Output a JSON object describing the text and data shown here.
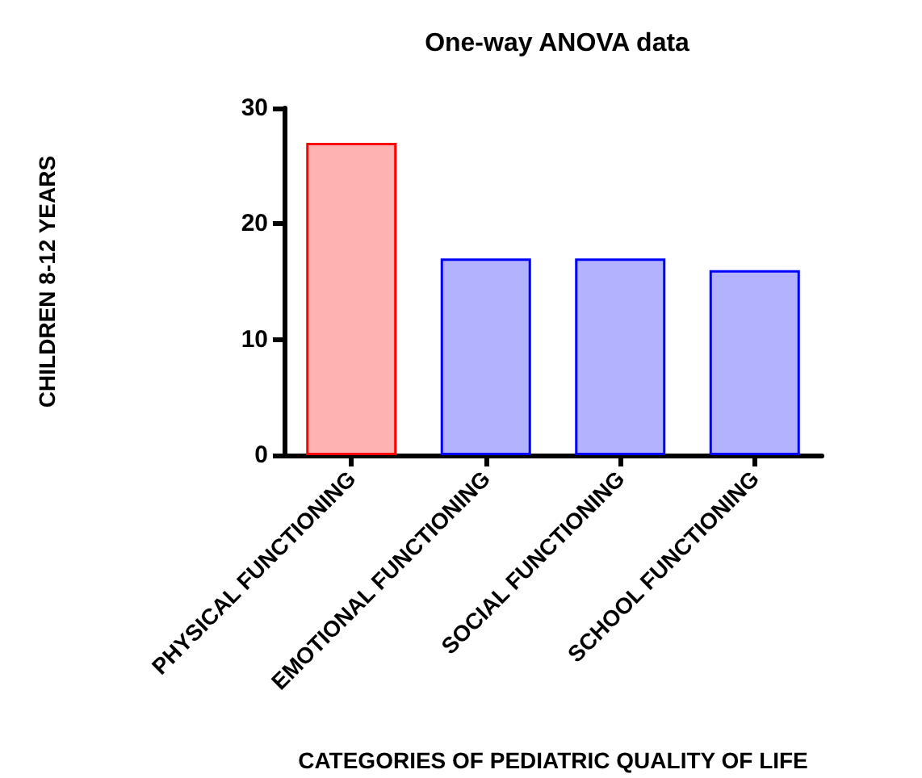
{
  "chart_data": {
    "type": "bar",
    "title": "One-way ANOVA data",
    "xlabel": "CATEGORIES OF PEDIATRIC QUALITY OF LIFE",
    "ylabel": "CHILDREN 8-12 YEARS",
    "categories": [
      "PHYSICAL FUNCTIONING",
      "EMOTIONAL FUNCTIONING",
      "SOCIAL FUNCTIONING",
      "SCHOOL FUNCTIONING"
    ],
    "values": [
      27,
      17,
      17,
      16
    ],
    "colors": [
      "#ff0000",
      "#0000ff",
      "#0000ff",
      "#0000ff"
    ],
    "ylim": [
      0,
      30
    ],
    "yticks": [
      0,
      10,
      20,
      30
    ],
    "grid": false
  }
}
